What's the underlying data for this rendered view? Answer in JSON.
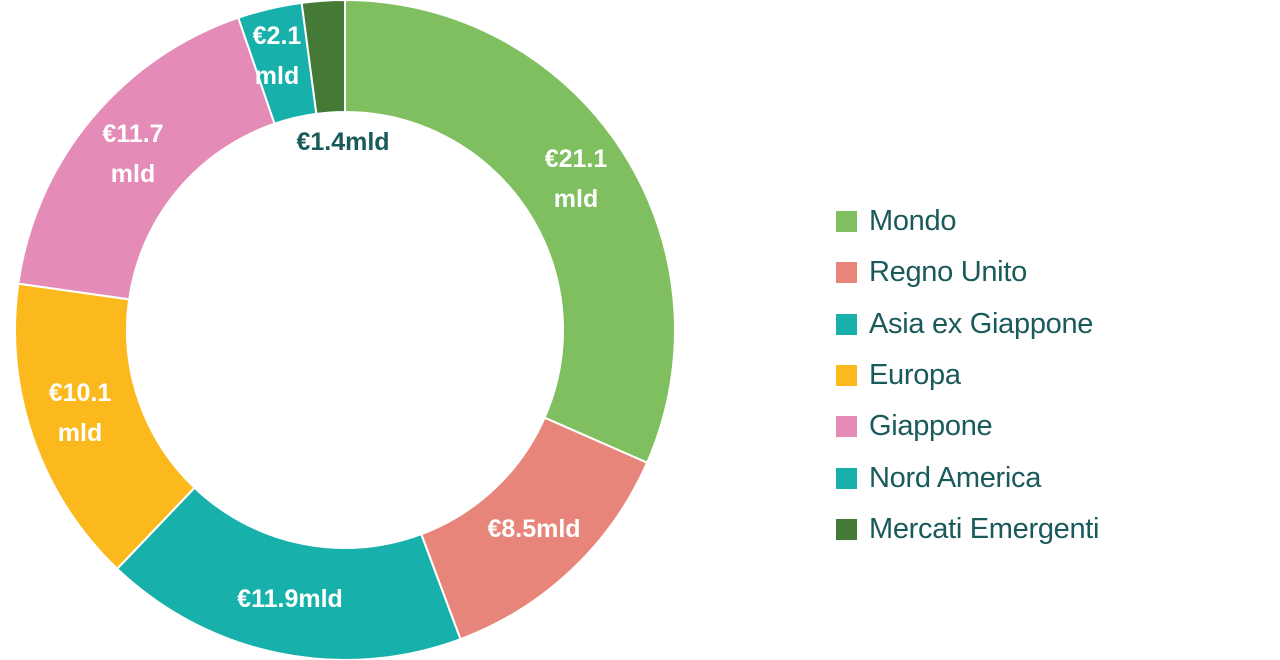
{
  "chart_data": {
    "type": "pie",
    "variant": "donut",
    "categories": [
      "Mondo",
      "Regno Unito",
      "Nord America",
      "Europa",
      "Giappone",
      "Asia ex Giappone",
      "Mercati Emergenti"
    ],
    "values": [
      21.1,
      8.5,
      11.9,
      10.1,
      11.7,
      2.1,
      1.4
    ],
    "unit": "€ mld",
    "slice_labels": [
      [
        "€21.1",
        "mld"
      ],
      [
        "€8.5mld"
      ],
      [
        "€11.9mld"
      ],
      [
        "€10.1",
        "mld"
      ],
      [
        "€11.7",
        "mld"
      ],
      [
        "€2.1",
        "mld"
      ],
      [
        "€1.4mld"
      ]
    ],
    "colors": [
      "#7fbf60",
      "#e8857a",
      "#17b0ab",
      "#fbb91d",
      "#e48bb8",
      "#17b0ab",
      "#447a35"
    ],
    "label_colors": [
      "#ffffff",
      "#ffffff",
      "#ffffff",
      "#ffffff",
      "#ffffff",
      "#ffffff",
      "#1b5a5a"
    ],
    "legend_placement": "right",
    "legend": [
      {
        "label": "Mondo",
        "color": "#7fbf60"
      },
      {
        "label": "Regno Unito",
        "color": "#e8857a"
      },
      {
        "label": "Asia ex Giappone",
        "color": "#17b0ab"
      },
      {
        "label": "Europa",
        "color": "#fbb91d"
      },
      {
        "label": "Giappone",
        "color": "#e48bb8"
      },
      {
        "label": "Nord America",
        "color": "#17b0ab"
      },
      {
        "label": "Mercati Emergenti",
        "color": "#447a35"
      }
    ]
  }
}
